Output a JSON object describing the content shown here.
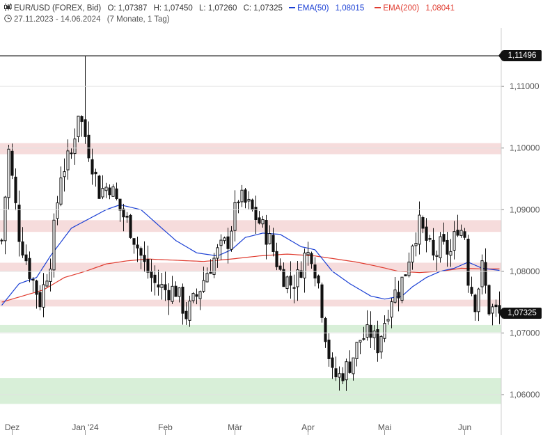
{
  "header": {
    "instrument": "EUR/USD (FOREX, Bid)",
    "open": "O: 1,07387",
    "high": "H: 1,07450",
    "low": "L: 1,07260",
    "close": "C: 1,07325",
    "ema50_label": "EMA(50)",
    "ema50_value": "1,08015",
    "ema200_label": "EMA(200)",
    "ema200_value": "1,08041",
    "date_range": "27.11.2023 - 14.06.2024",
    "timeframe": "(7 Monate, 1 Tag)",
    "tag_high": "1,11496",
    "tag_last": "1,07325"
  },
  "chart_data": {
    "type": "candlestick",
    "ylim": [
      1.0565,
      1.1195
    ],
    "y_ticks": [
      {
        "value": 1.06,
        "label": "1,06000"
      },
      {
        "value": 1.07,
        "label": "1,07000"
      },
      {
        "value": 1.08,
        "label": "1,08000"
      },
      {
        "value": 1.09,
        "label": "1,09000"
      },
      {
        "value": 1.1,
        "label": "1,10000"
      },
      {
        "value": 1.11,
        "label": "1,11000"
      }
    ],
    "x_labels": [
      {
        "label": "Dez",
        "bar": 3
      },
      {
        "label": "Jan '24",
        "bar": 24
      },
      {
        "label": "Feb",
        "bar": 47
      },
      {
        "label": "Mär",
        "bar": 67
      },
      {
        "label": "Apr",
        "bar": 88
      },
      {
        "label": "Mai",
        "bar": 110
      },
      {
        "label": "Jun",
        "bar": 133
      }
    ],
    "period_high": 1.11496,
    "last_close": 1.07325,
    "bar_count": 144,
    "zones": [
      {
        "from": 1.099,
        "to": 1.1008,
        "color": "#f6dcdc"
      },
      {
        "from": 1.0864,
        "to": 1.0883,
        "color": "#f6dcdc"
      },
      {
        "from": 1.08,
        "to": 1.0814,
        "color": "#f6dcdc"
      },
      {
        "from": 1.0743,
        "to": 1.0754,
        "color": "#f6dcdc"
      },
      {
        "from": 1.0701,
        "to": 1.0713,
        "color": "#d8efd8"
      },
      {
        "from": 1.0585,
        "to": 1.0627,
        "color": "#d8efd8"
      }
    ],
    "anchors": [
      [
        0,
        1.085
      ],
      [
        2,
        1.0995
      ],
      [
        5,
        1.086
      ],
      [
        8,
        1.08
      ],
      [
        11,
        1.0752
      ],
      [
        14,
        1.082
      ],
      [
        17,
        1.096
      ],
      [
        20,
        1.099
      ],
      [
        22,
        1.106
      ],
      [
        24,
        1.102
      ],
      [
        28,
        1.093
      ],
      [
        31,
        1.094
      ],
      [
        34,
        1.09
      ],
      [
        37,
        1.087
      ],
      [
        41,
        1.081
      ],
      [
        44,
        1.078
      ],
      [
        47,
        1.077
      ],
      [
        50,
        1.077
      ],
      [
        53,
        1.073
      ],
      [
        56,
        1.076
      ],
      [
        59,
        1.08
      ],
      [
        62,
        1.083
      ],
      [
        65,
        1.085
      ],
      [
        68,
        1.092
      ],
      [
        71,
        1.0905
      ],
      [
        74,
        1.088
      ],
      [
        77,
        1.085
      ],
      [
        80,
        1.08
      ],
      [
        83,
        1.078
      ],
      [
        85,
        1.079
      ],
      [
        87,
        1.0825
      ],
      [
        89,
        1.083
      ],
      [
        91,
        1.078
      ],
      [
        93,
        1.07
      ],
      [
        95,
        1.063
      ],
      [
        97,
        1.063
      ],
      [
        100,
        1.065
      ],
      [
        103,
        1.069
      ],
      [
        106,
        1.07
      ],
      [
        108,
        1.068
      ],
      [
        110,
        1.072
      ],
      [
        112,
        1.076
      ],
      [
        114,
        1.077
      ],
      [
        116,
        1.08
      ],
      [
        118,
        1.085
      ],
      [
        120,
        1.0875
      ],
      [
        122,
        1.085
      ],
      [
        124,
        1.082
      ],
      [
        126,
        1.084
      ],
      [
        129,
        1.083
      ],
      [
        131,
        1.0875
      ],
      [
        133,
        1.086
      ],
      [
        134,
        1.079
      ],
      [
        136,
        1.075
      ],
      [
        138,
        1.0805
      ],
      [
        140,
        1.074
      ],
      [
        143,
        1.07325
      ]
    ],
    "ema50": [
      [
        0,
        1.0745
      ],
      [
        5,
        1.078
      ],
      [
        10,
        1.079
      ],
      [
        14,
        1.0825
      ],
      [
        20,
        1.087
      ],
      [
        25,
        1.0885
      ],
      [
        30,
        1.09
      ],
      [
        34,
        1.0908
      ],
      [
        40,
        1.09
      ],
      [
        45,
        1.0875
      ],
      [
        50,
        1.085
      ],
      [
        56,
        1.083
      ],
      [
        62,
        1.0825
      ],
      [
        66,
        1.0835
      ],
      [
        70,
        1.0855
      ],
      [
        75,
        1.0862
      ],
      [
        80,
        1.086
      ],
      [
        86,
        1.084
      ],
      [
        90,
        1.0835
      ],
      [
        95,
        1.08
      ],
      [
        100,
        1.078
      ],
      [
        106,
        1.076
      ],
      [
        110,
        1.0755
      ],
      [
        115,
        1.076
      ],
      [
        118,
        1.0775
      ],
      [
        122,
        1.079
      ],
      [
        126,
        1.08
      ],
      [
        130,
        1.0805
      ],
      [
        134,
        1.0815
      ],
      [
        138,
        1.0805
      ],
      [
        143,
        1.08015
      ]
    ],
    "ema200": [
      [
        0,
        1.075
      ],
      [
        6,
        1.076
      ],
      [
        12,
        1.077
      ],
      [
        18,
        1.079
      ],
      [
        24,
        1.08
      ],
      [
        30,
        1.0812
      ],
      [
        36,
        1.0817
      ],
      [
        42,
        1.082
      ],
      [
        50,
        1.0818
      ],
      [
        58,
        1.0816
      ],
      [
        66,
        1.082
      ],
      [
        74,
        1.0825
      ],
      [
        82,
        1.0828
      ],
      [
        90,
        1.0825
      ],
      [
        96,
        1.082
      ],
      [
        102,
        1.0815
      ],
      [
        108,
        1.0808
      ],
      [
        114,
        1.08
      ],
      [
        120,
        1.0798
      ],
      [
        126,
        1.08
      ],
      [
        132,
        1.0805
      ],
      [
        138,
        1.0804
      ],
      [
        143,
        1.08041
      ]
    ]
  },
  "colors": {
    "ema50": "#1a3fd4",
    "ema200": "#e03b2f",
    "candle": "#111111",
    "grid": "#e2e2e2"
  }
}
